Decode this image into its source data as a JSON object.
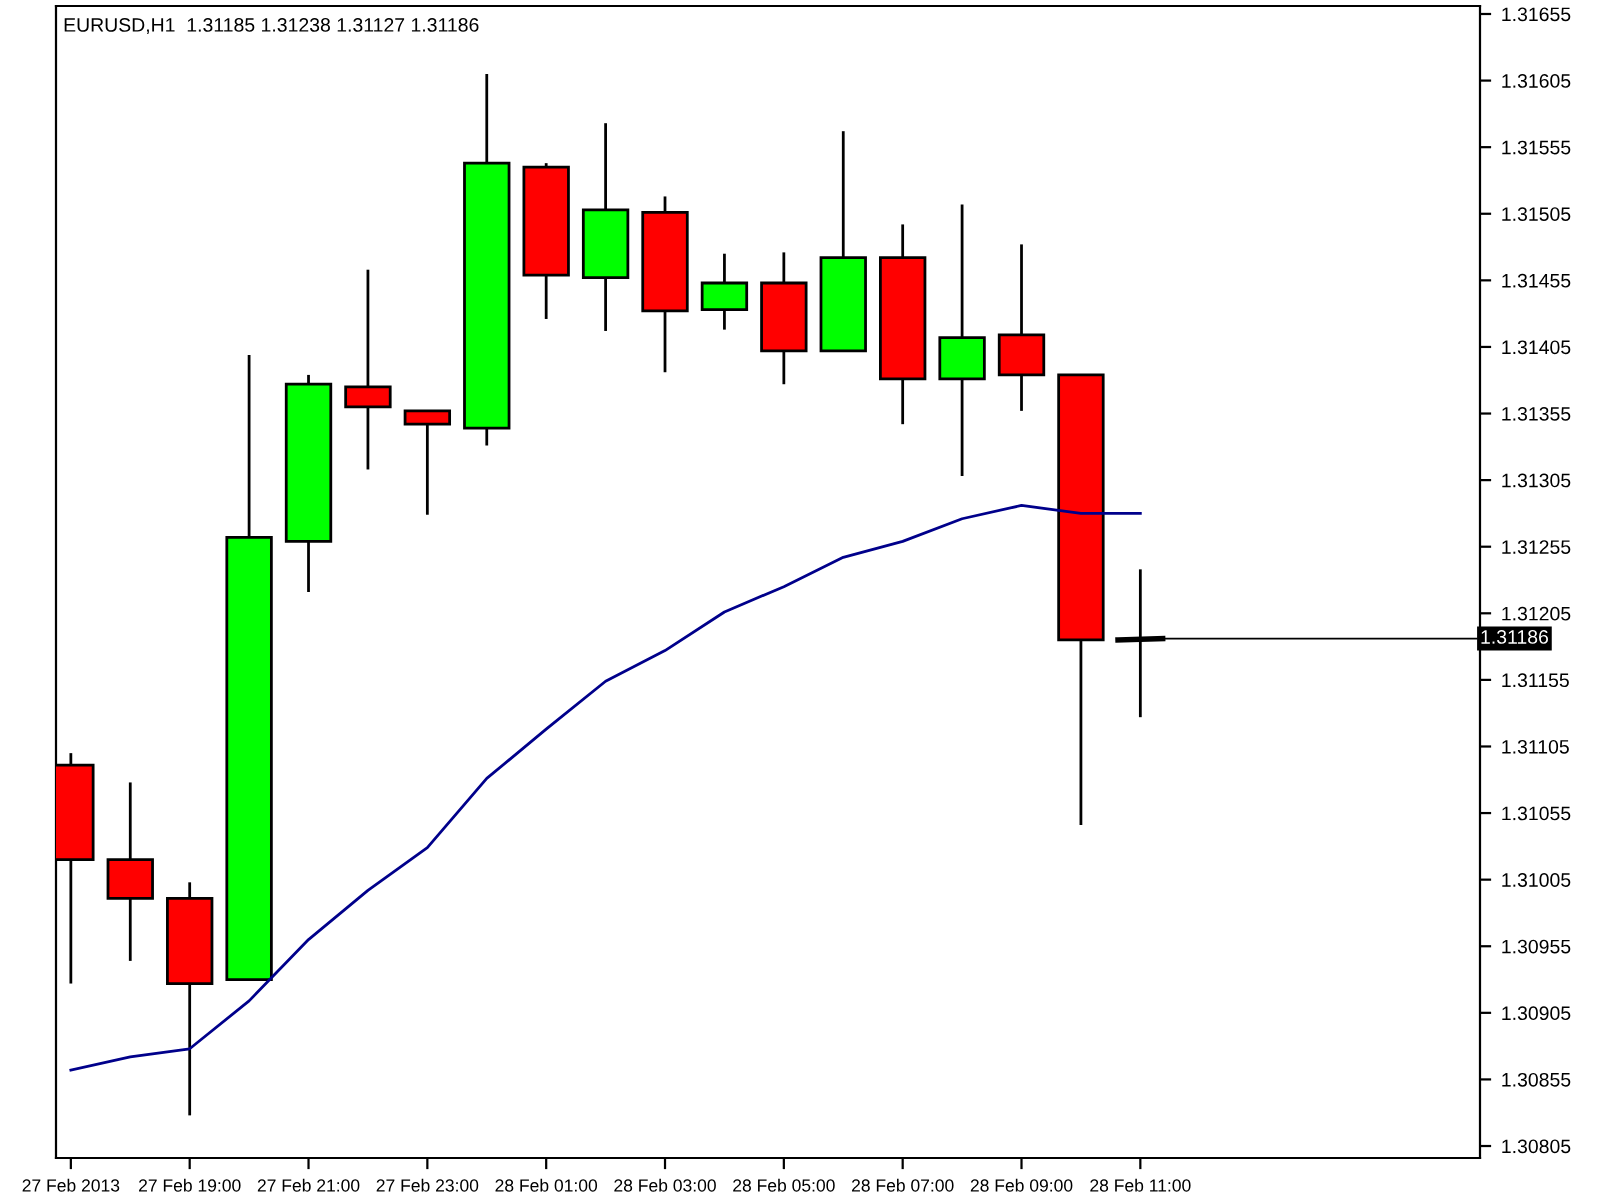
{
  "chart_data": {
    "type": "candlestick",
    "title": "EURUSD,H1  1.31185 1.31238 1.31127 1.31186",
    "x": [
      "2013-02-27T17:00",
      "2013-02-27T18:00",
      "2013-02-27T19:00",
      "2013-02-27T20:00",
      "2013-02-27T21:00",
      "2013-02-27T22:00",
      "2013-02-27T23:00",
      "2013-02-28T00:00",
      "2013-02-28T01:00",
      "2013-02-28T02:00",
      "2013-02-28T03:00",
      "2013-02-28T04:00",
      "2013-02-28T05:00",
      "2013-02-28T06:00",
      "2013-02-28T07:00",
      "2013-02-28T08:00",
      "2013-02-28T09:00",
      "2013-02-28T10:00",
      "2013-02-28T11:00"
    ],
    "ohlc": [
      [
        1.31091,
        1.311,
        1.30927,
        1.3102
      ],
      [
        1.3102,
        1.31078,
        1.30944,
        1.30991
      ],
      [
        1.30991,
        1.31003,
        1.30828,
        1.30927
      ],
      [
        1.3093,
        1.31399,
        1.3093,
        1.31262
      ],
      [
        1.31259,
        1.31384,
        1.31221,
        1.31377
      ],
      [
        1.31375,
        1.31463,
        1.31313,
        1.3136
      ],
      [
        1.31357,
        1.31357,
        1.31279,
        1.31347
      ],
      [
        1.31344,
        1.3161,
        1.31331,
        1.31543
      ],
      [
        1.3154,
        1.31543,
        1.31426,
        1.31459
      ],
      [
        1.31457,
        1.31573,
        1.31417,
        1.31508
      ],
      [
        1.31506,
        1.31518,
        1.31386,
        1.31432
      ],
      [
        1.31433,
        1.31475,
        1.31418,
        1.31453
      ],
      [
        1.31453,
        1.31476,
        1.31377,
        1.31402
      ],
      [
        1.31402,
        1.31567,
        1.31402,
        1.31472
      ],
      [
        1.31472,
        1.31497,
        1.31347,
        1.31381
      ],
      [
        1.31381,
        1.31512,
        1.31308,
        1.31412
      ],
      [
        1.31414,
        1.31482,
        1.31357,
        1.31384
      ],
      [
        1.31384,
        1.31384,
        1.31046,
        1.31185
      ],
      [
        1.31185,
        1.31238,
        1.31127,
        1.31186
      ]
    ],
    "colors": [
      "#ff0000",
      "#ff0000",
      "#ff0000",
      "#00ff00",
      "#00ff00",
      "#ff0000",
      "#ff0000",
      "#00ff00",
      "#ff0000",
      "#00ff00",
      "#ff0000",
      "#00ff00",
      "#ff0000",
      "#00ff00",
      "#ff0000",
      "#00ff00",
      "#ff0000",
      "#ff0000",
      "#000000"
    ],
    "series": [
      {
        "type": "line",
        "color": "#00008b",
        "values": [
          1.30862,
          1.30872,
          1.30878,
          1.30914,
          1.3096,
          1.30997,
          1.31029,
          1.31081,
          1.31118,
          1.31154,
          1.31177,
          1.31206,
          1.31225,
          1.31247,
          1.31259,
          1.31276,
          1.31286,
          1.3128,
          1.3128
        ]
      }
    ],
    "xlim": [
      "2013-02-27T16:45",
      "2013-02-28T16:43"
    ],
    "xticks": [
      {
        "value": "2013-02-27T17:00",
        "label": "27 Feb 2013"
      },
      {
        "value": "2013-02-27T19:00",
        "label": "27 Feb 19:00"
      },
      {
        "value": "2013-02-27T21:00",
        "label": "27 Feb 21:00"
      },
      {
        "value": "2013-02-27T23:00",
        "label": "27 Feb 23:00"
      },
      {
        "value": "2013-02-28T01:00",
        "label": "28 Feb 01:00"
      },
      {
        "value": "2013-02-28T03:00",
        "label": "28 Feb 03:00"
      },
      {
        "value": "2013-02-28T05:00",
        "label": "28 Feb 05:00"
      },
      {
        "value": "2013-02-28T07:00",
        "label": "28 Feb 07:00"
      },
      {
        "value": "2013-02-28T09:00",
        "label": "28 Feb 09:00"
      },
      {
        "value": "2013-02-28T11:00",
        "label": "28 Feb 11:00"
      }
    ],
    "ylim": [
      1.30796,
      1.31661
    ],
    "yticks": [
      1.30805,
      1.30855,
      1.30905,
      1.30955,
      1.31005,
      1.31055,
      1.31105,
      1.31155,
      1.31205,
      1.31255,
      1.31305,
      1.31355,
      1.31405,
      1.31455,
      1.31505,
      1.31555,
      1.31605,
      1.31655
    ],
    "annotations": [
      {
        "text": "1.31186",
        "x": "2013-02-28T11:00",
        "y": 1.31186
      }
    ],
    "grid": false
  }
}
